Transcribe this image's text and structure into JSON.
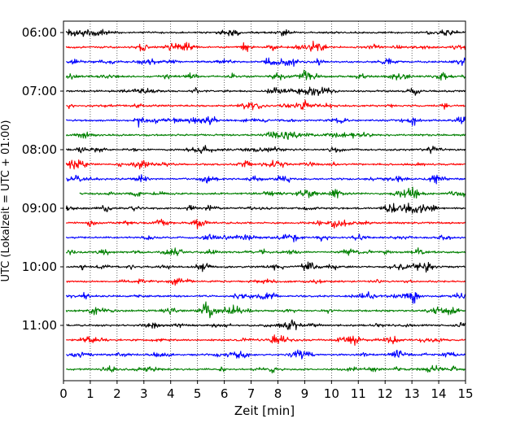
{
  "chart_data": {
    "type": "line",
    "title": "",
    "xlabel": "Zeit  [min]",
    "ylabel": "UTC (Lokalzeit = UTC + 01:00)",
    "xlim": [
      0,
      15
    ],
    "xticks": [
      0,
      1,
      2,
      3,
      4,
      5,
      6,
      7,
      8,
      9,
      10,
      11,
      12,
      13,
      14,
      15
    ],
    "grid": "vertical-dotted",
    "ytick_labels": [
      "06:00",
      "07:00",
      "08:00",
      "09:00",
      "10:00",
      "11:00"
    ],
    "trace_interval_minutes": 15,
    "first_trace": "06:00",
    "trace_count": 24,
    "trace_colors": [
      "#000000",
      "#ff0000",
      "#0000ff",
      "#008000"
    ],
    "legend": "none"
  }
}
